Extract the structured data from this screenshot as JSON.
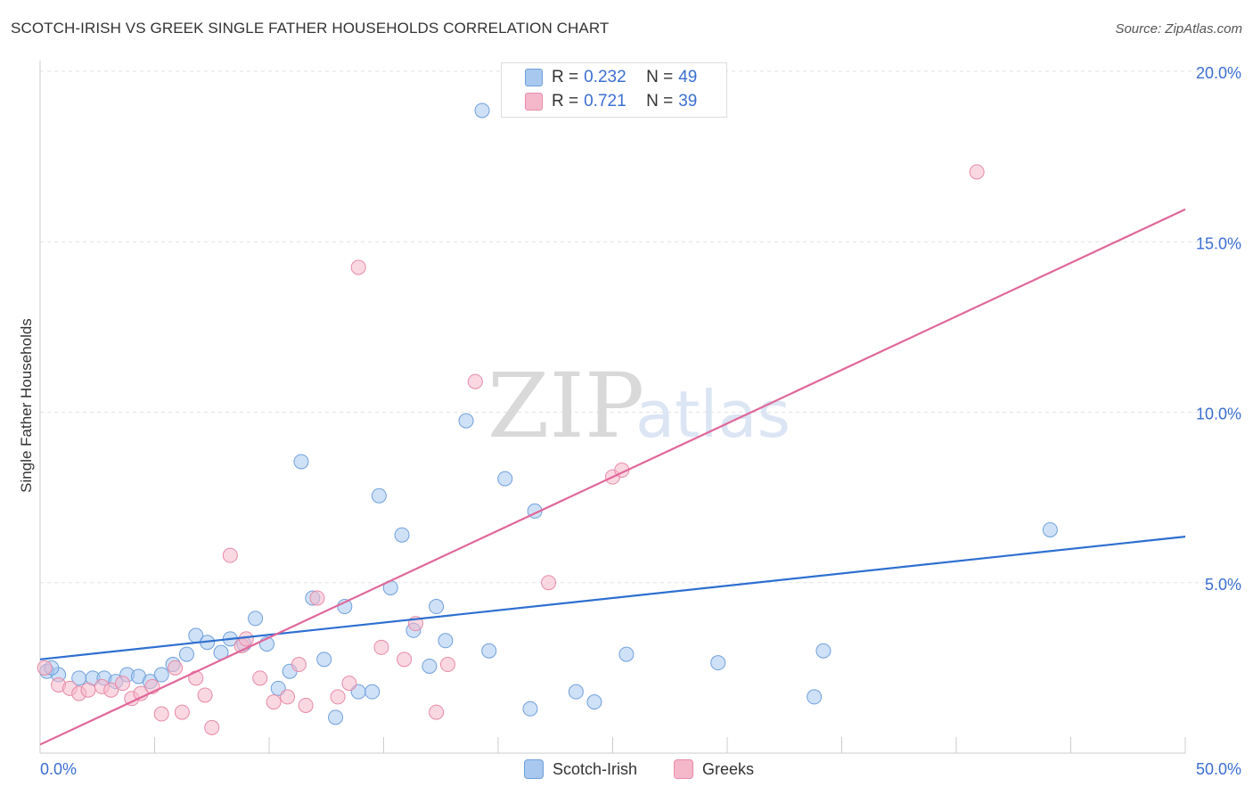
{
  "header": {
    "title": "SCOTCH-IRISH VS GREEK SINGLE FATHER HOUSEHOLDS CORRELATION CHART",
    "source": "Source: ZipAtlas.com"
  },
  "watermark": {
    "zip": "ZIP",
    "atlas": "atlas"
  },
  "legend": {
    "rows": [
      {
        "r_label": "R =",
        "r_value": "0.232",
        "n_label": "N =",
        "n_value": "49",
        "color": "#a8c8f0"
      },
      {
        "r_label": "R =",
        "r_value": "0.721",
        "n_label": "N =",
        "n_value": "39",
        "color": "#f5b8cb"
      }
    ]
  },
  "bottom_legend": {
    "items": [
      {
        "label": "Scotch-Irish",
        "color": "#a8c8f0"
      },
      {
        "label": "Greeks",
        "color": "#f5b8cb"
      }
    ]
  },
  "chart_data": {
    "type": "scatter",
    "title": "SCOTCH-IRISH VS GREEK SINGLE FATHER HOUSEHOLDS CORRELATION CHART",
    "xlabel": "",
    "ylabel": "Single Father Households",
    "xlim": [
      0,
      50
    ],
    "ylim": [
      0,
      20
    ],
    "x_tick_labels": [
      "0.0%",
      "50.0%"
    ],
    "y_ticks": [
      5,
      10,
      15,
      20
    ],
    "y_tick_labels": [
      "5.0%",
      "10.0%",
      "15.0%",
      "20.0%"
    ],
    "grid": true,
    "series": [
      {
        "name": "Scotch-Irish",
        "color": "#a8c8f0",
        "stroke": "#6fa0dc",
        "line_color": "#2e6fd0",
        "trend": {
          "x": [
            0,
            50
          ],
          "y": [
            2.75,
            6.35
          ]
        },
        "points": [
          [
            0.3,
            2.4
          ],
          [
            0.8,
            2.3
          ],
          [
            1.7,
            2.2
          ],
          [
            2.3,
            2.2
          ],
          [
            2.8,
            2.2
          ],
          [
            3.3,
            2.1
          ],
          [
            3.8,
            2.3
          ],
          [
            4.3,
            2.25
          ],
          [
            4.8,
            2.1
          ],
          [
            5.3,
            2.3
          ],
          [
            5.8,
            2.6
          ],
          [
            6.4,
            2.9
          ],
          [
            6.8,
            3.45
          ],
          [
            7.3,
            3.25
          ],
          [
            7.9,
            2.95
          ],
          [
            8.3,
            3.35
          ],
          [
            8.9,
            3.2
          ],
          [
            9.4,
            3.95
          ],
          [
            9.9,
            3.2
          ],
          [
            10.4,
            1.9
          ],
          [
            10.9,
            2.4
          ],
          [
            11.4,
            8.55
          ],
          [
            11.9,
            4.55
          ],
          [
            12.4,
            2.75
          ],
          [
            12.9,
            1.05
          ],
          [
            13.3,
            4.3
          ],
          [
            13.9,
            1.8
          ],
          [
            14.5,
            1.8
          ],
          [
            14.8,
            7.55
          ],
          [
            15.3,
            4.85
          ],
          [
            15.8,
            6.4
          ],
          [
            16.3,
            3.6
          ],
          [
            17.0,
            2.55
          ],
          [
            17.3,
            4.3
          ],
          [
            17.7,
            3.3
          ],
          [
            18.6,
            9.75
          ],
          [
            19.3,
            18.85
          ],
          [
            19.6,
            3.0
          ],
          [
            20.3,
            8.05
          ],
          [
            21.4,
            1.3
          ],
          [
            21.6,
            7.1
          ],
          [
            23.4,
            1.8
          ],
          [
            24.2,
            1.5
          ],
          [
            25.6,
            2.9
          ],
          [
            29.6,
            2.65
          ],
          [
            33.8,
            1.65
          ],
          [
            34.2,
            3.0
          ],
          [
            44.1,
            6.55
          ],
          [
            0.5,
            2.5
          ]
        ]
      },
      {
        "name": "Greeks",
        "color": "#f5b8cb",
        "stroke": "#e88aa8",
        "line_color": "#e0679a",
        "trend": {
          "x": [
            0,
            50
          ],
          "y": [
            0.25,
            15.95
          ]
        },
        "points": [
          [
            0.2,
            2.5
          ],
          [
            0.8,
            2.0
          ],
          [
            1.3,
            1.9
          ],
          [
            1.7,
            1.75
          ],
          [
            2.1,
            1.85
          ],
          [
            2.7,
            1.95
          ],
          [
            3.1,
            1.85
          ],
          [
            3.6,
            2.05
          ],
          [
            4.0,
            1.6
          ],
          [
            4.4,
            1.75
          ],
          [
            4.9,
            1.95
          ],
          [
            5.3,
            1.15
          ],
          [
            5.9,
            2.5
          ],
          [
            6.2,
            1.2
          ],
          [
            6.8,
            2.2
          ],
          [
            7.2,
            1.7
          ],
          [
            7.5,
            0.75
          ],
          [
            8.3,
            5.8
          ],
          [
            8.8,
            3.15
          ],
          [
            9.0,
            3.35
          ],
          [
            9.6,
            2.2
          ],
          [
            10.2,
            1.5
          ],
          [
            10.8,
            1.65
          ],
          [
            11.3,
            2.6
          ],
          [
            11.6,
            1.4
          ],
          [
            12.1,
            4.55
          ],
          [
            13.0,
            1.65
          ],
          [
            13.5,
            2.05
          ],
          [
            13.9,
            14.25
          ],
          [
            14.9,
            3.1
          ],
          [
            15.9,
            2.75
          ],
          [
            16.4,
            3.8
          ],
          [
            17.3,
            1.2
          ],
          [
            17.8,
            2.6
          ],
          [
            19.0,
            10.9
          ],
          [
            22.2,
            5.0
          ],
          [
            25.0,
            8.1
          ],
          [
            25.4,
            8.3
          ],
          [
            40.9,
            17.05
          ]
        ]
      }
    ]
  }
}
